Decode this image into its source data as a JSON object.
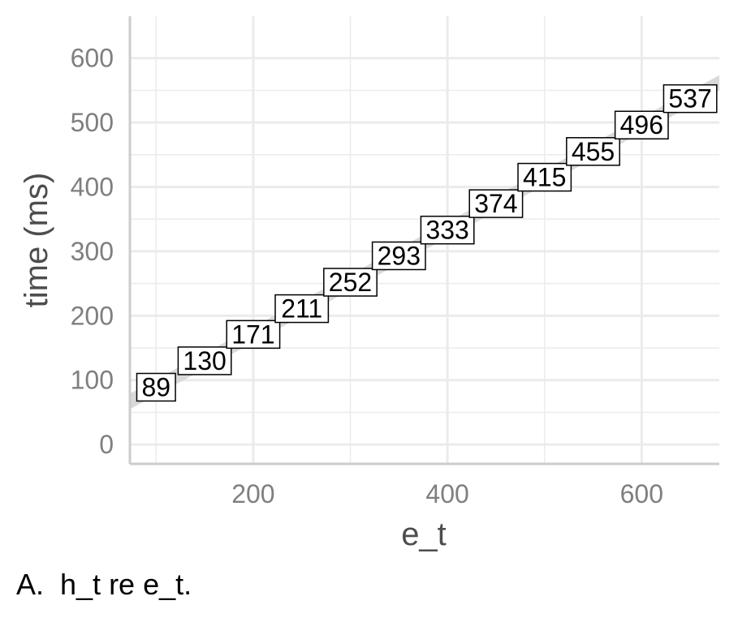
{
  "chart_data": {
    "type": "line",
    "title": "",
    "xlabel": "e_t",
    "ylabel": "time (ms)",
    "xlim": [
      73,
      680
    ],
    "ylim": [
      -30,
      665
    ],
    "xticks": [
      200,
      400,
      600
    ],
    "yticks": [
      0,
      100,
      200,
      300,
      400,
      500,
      600
    ],
    "grid": true,
    "series": [
      {
        "x": [
          100,
          150,
          200,
          250,
          300,
          350,
          400,
          450,
          500,
          550,
          600,
          650
        ],
        "values": [
          89,
          130,
          171,
          211,
          252,
          293,
          333,
          374,
          415,
          455,
          496,
          537
        ],
        "labels": [
          "89",
          "130",
          "171",
          "211",
          "252",
          "293",
          "333",
          "374",
          "415",
          "455",
          "496",
          "537"
        ]
      }
    ],
    "band_color": "#d9d9d9",
    "grid_color": "#ebebeb"
  },
  "caption": "A.  h_t re e_t."
}
